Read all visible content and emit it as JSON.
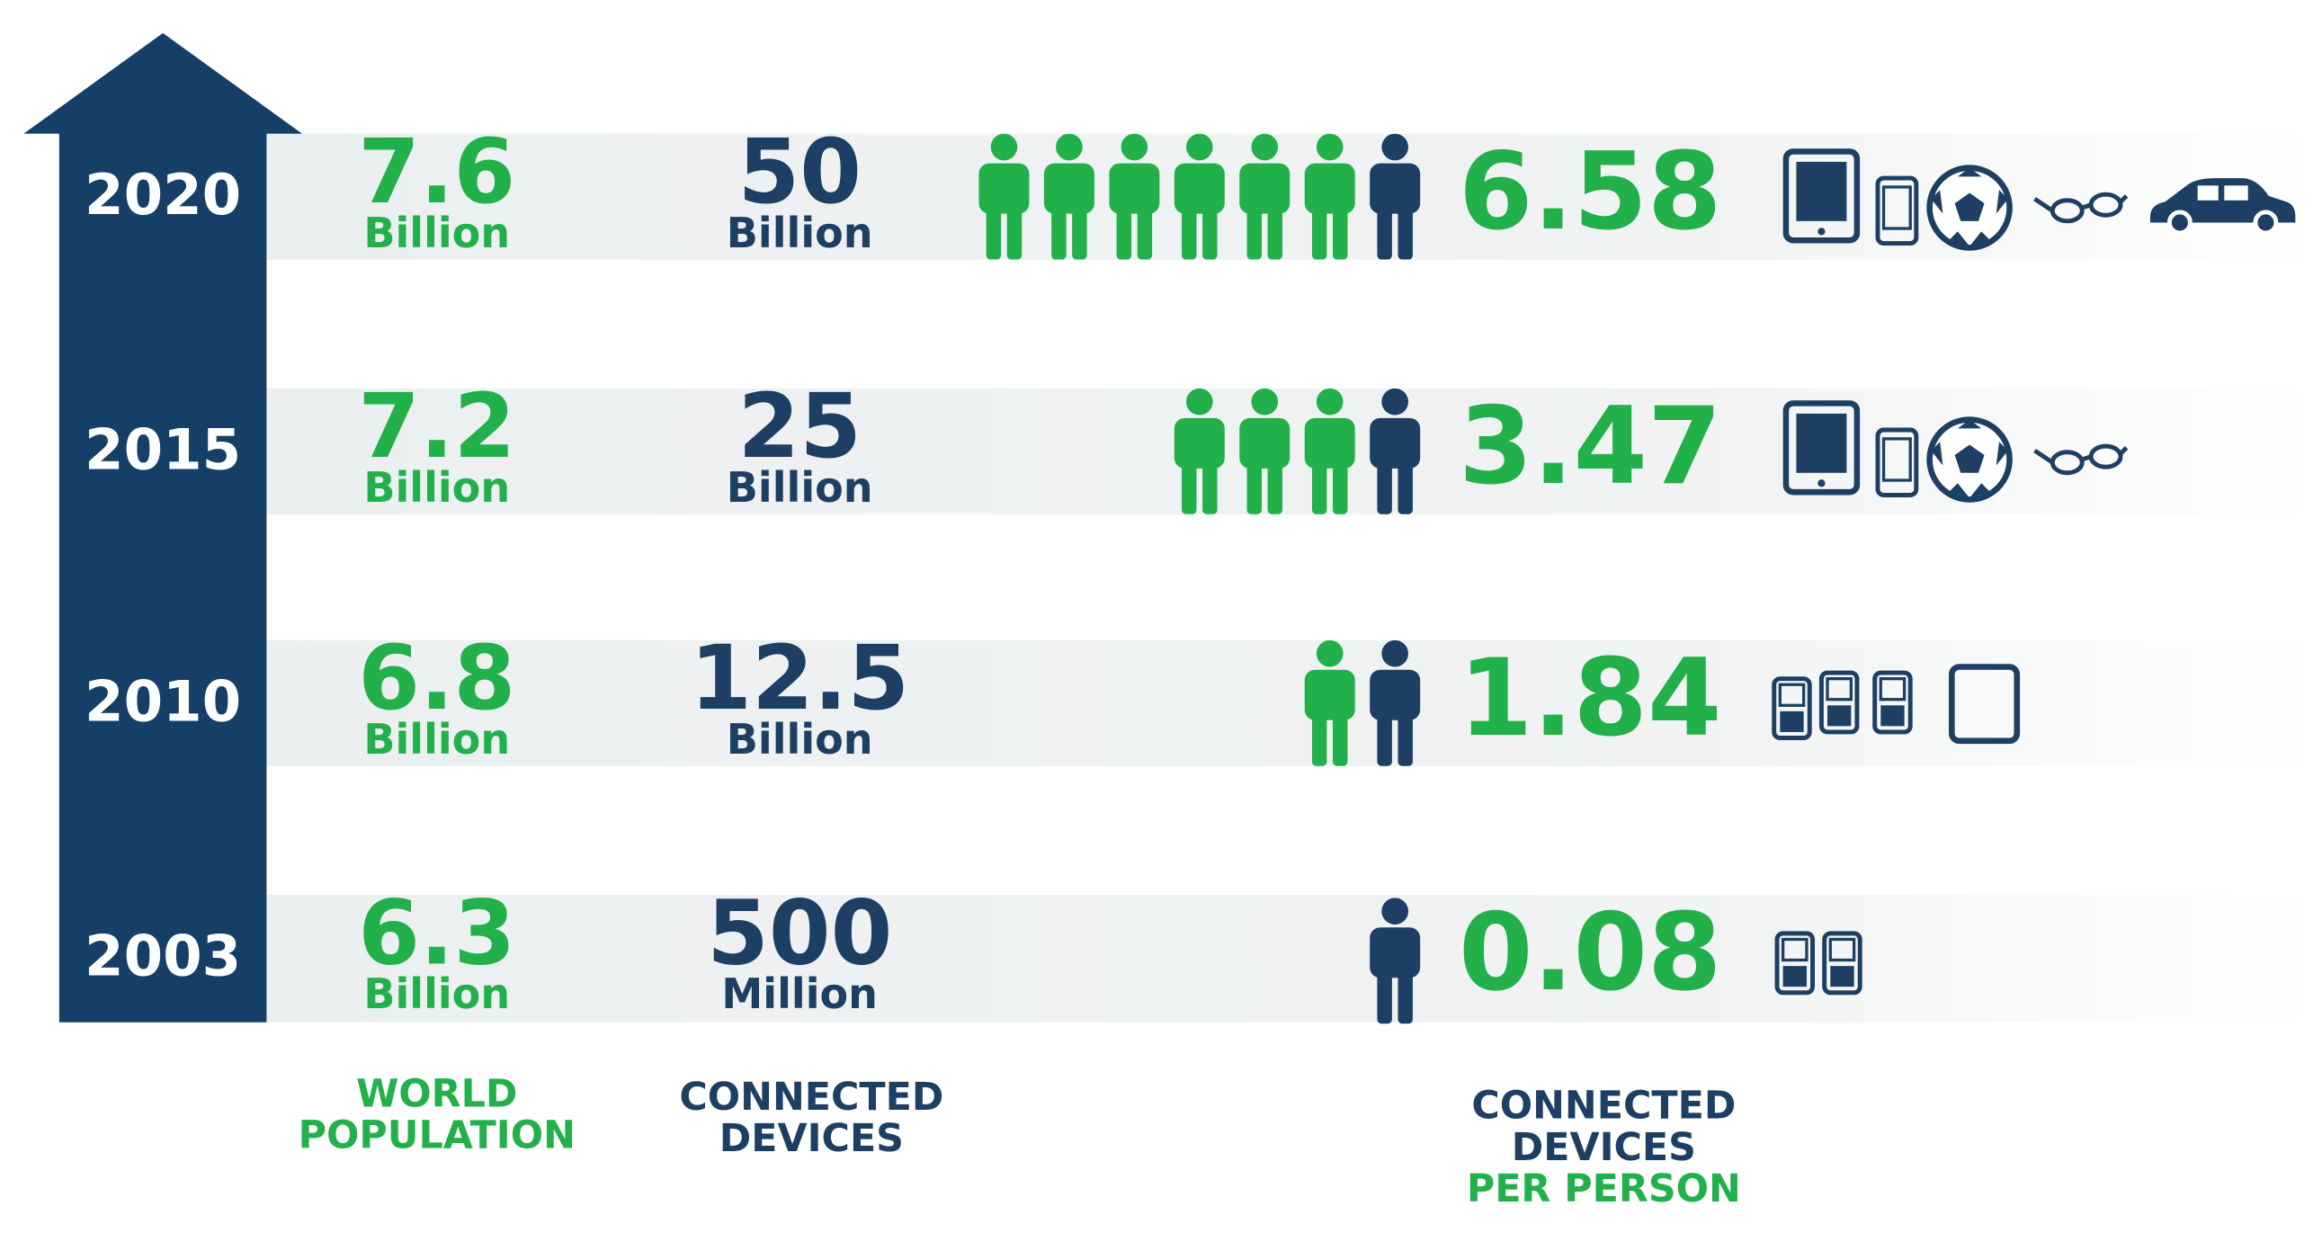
{
  "rows": [
    {
      "year": "2020",
      "population": "7.6",
      "population_unit": "Billion",
      "devices": "50",
      "devices_unit": "Billion",
      "per_person": "6.58"
    },
    {
      "year": "2015",
      "population": "7.2",
      "population_unit": "Billion",
      "devices": "25",
      "devices_unit": "Billion",
      "per_person": "3.47"
    },
    {
      "year": "2010",
      "population": "6.8",
      "population_unit": "Billion",
      "devices": "12.5",
      "devices_unit": "Billion",
      "per_person": "1.84"
    },
    {
      "year": "2003",
      "population": "6.3",
      "population_unit": "Billion",
      "devices": "500",
      "devices_unit": "Million",
      "per_person": "0.08"
    }
  ],
  "labels": {
    "population": [
      "WORLD",
      "POPULATION"
    ],
    "devices": [
      "CONNECTED",
      "DEVICES"
    ],
    "per_person": [
      "CONNECTED",
      "DEVICES",
      "PER PERSON"
    ]
  }
}
